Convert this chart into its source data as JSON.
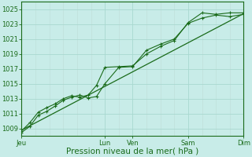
{
  "background_color": "#c8ece8",
  "grid_color_major": "#a8d8d0",
  "grid_color_minor": "#c0e0da",
  "line_color": "#1a6b1a",
  "xlabel": "Pression niveau de la mer( hPa )",
  "xlabel_fontsize": 7.5,
  "tick_fontsize": 6,
  "ylim": [
    1008.0,
    1026.0
  ],
  "yticks": [
    1009,
    1011,
    1013,
    1015,
    1017,
    1019,
    1021,
    1023,
    1025
  ],
  "day_labels": [
    "Jeu",
    "Lun",
    "Ven",
    "Sam",
    "Dim"
  ],
  "day_positions": [
    0.0,
    3.0,
    4.0,
    6.0,
    8.0
  ],
  "xlim": [
    0,
    8
  ],
  "series1_x": [
    0.0,
    0.3,
    0.6,
    0.9,
    1.2,
    1.5,
    1.8,
    2.1,
    2.4,
    2.7,
    3.0,
    3.5,
    4.0,
    4.5,
    5.0,
    5.5,
    6.0,
    6.5,
    7.0,
    7.5,
    8.0
  ],
  "series1_y": [
    1008.5,
    1009.3,
    1010.8,
    1011.3,
    1012.0,
    1012.8,
    1013.2,
    1013.5,
    1013.1,
    1013.3,
    1015.0,
    1017.2,
    1017.3,
    1019.5,
    1020.3,
    1021.0,
    1023.1,
    1023.8,
    1024.2,
    1024.0,
    1024.3
  ],
  "series2_x": [
    0.0,
    0.3,
    0.6,
    0.9,
    1.2,
    1.5,
    1.8,
    2.1,
    2.4,
    2.7,
    3.0,
    3.5,
    4.0,
    4.5,
    5.0,
    5.5,
    6.0,
    6.5,
    7.0,
    7.5,
    8.0
  ],
  "series2_y": [
    1008.7,
    1009.8,
    1011.2,
    1011.8,
    1012.3,
    1013.0,
    1013.4,
    1013.2,
    1013.5,
    1014.8,
    1017.2,
    1017.3,
    1017.4,
    1019.0,
    1020.0,
    1020.8,
    1023.2,
    1024.5,
    1024.3,
    1024.5,
    1024.5
  ],
  "trend_x": [
    0.0,
    8.0
  ],
  "trend_y": [
    1008.8,
    1024.4
  ],
  "minor_x_positions": [
    0.5,
    1.0,
    1.5,
    2.0,
    2.5,
    3.5,
    4.5,
    5.0,
    5.5,
    6.5,
    7.0,
    7.5
  ]
}
